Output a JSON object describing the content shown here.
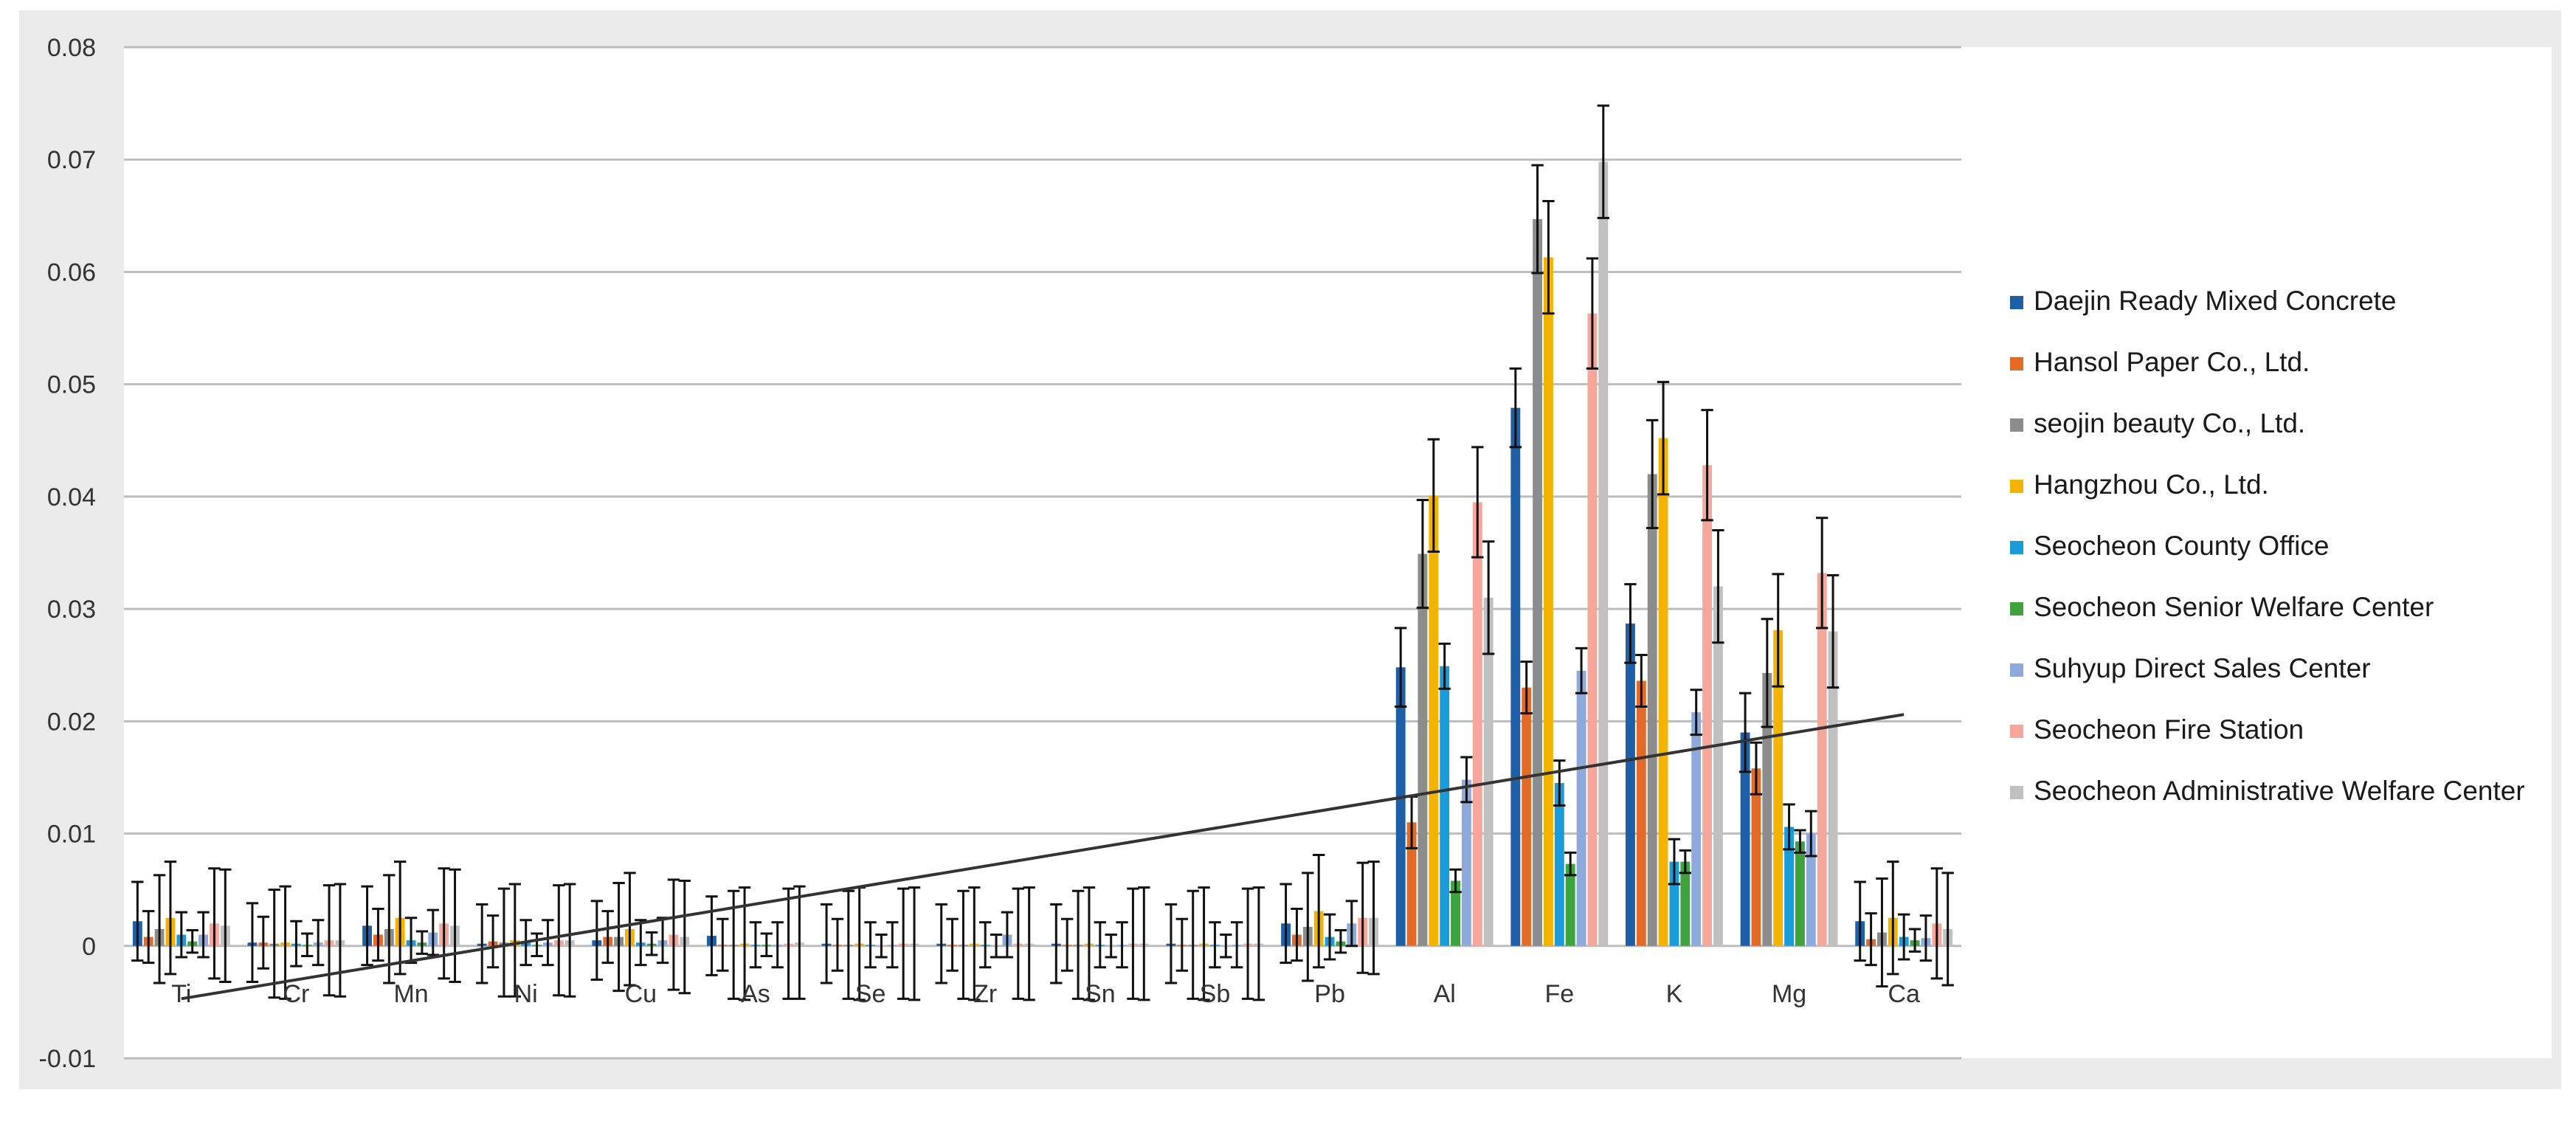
{
  "chart_data": {
    "type": "bar",
    "title": "",
    "xlabel": "",
    "ylabel": "",
    "ylim": [
      -0.01,
      0.08
    ],
    "yticks": [
      "0.08",
      "0.07",
      "0.06",
      "0.05",
      "0.04",
      "0.03",
      "0.02",
      "0.01",
      "0",
      "-0.01"
    ],
    "ytick_values": [
      0.08,
      0.07,
      0.06,
      0.05,
      0.04,
      0.03,
      0.02,
      0.01,
      0,
      -0.01
    ],
    "grid": true,
    "legend_position": "right",
    "categories": [
      "Ti",
      "Cr",
      "Mn",
      "Ni",
      "Cu",
      "As",
      "Se",
      "Zr",
      "Sn",
      "Sb",
      "Pb",
      "Al",
      "Fe",
      "K",
      "Mg",
      "Ca"
    ],
    "series": [
      {
        "name": "Daejin Ready Mixed Concrete",
        "color": "#1f5fa8",
        "values": [
          0.0022,
          0.0003,
          0.0018,
          0.0002,
          0.0005,
          0.0009,
          0.0002,
          0.0002,
          0.0002,
          0.0002,
          0.002,
          0.0248,
          0.0479,
          0.0287,
          0.019,
          0.0022
        ],
        "errors": [
          0.0035,
          0.0035,
          0.0035,
          0.0035,
          0.0035,
          0.0035,
          0.0035,
          0.0035,
          0.0035,
          0.0035,
          0.0035,
          0.0035,
          0.0035,
          0.0035,
          0.0035,
          0.0035
        ]
      },
      {
        "name": "Hansol Paper Co., Ltd.",
        "color": "#e26b2a",
        "values": [
          0.0008,
          0.0003,
          0.001,
          0.0004,
          0.0008,
          0.0001,
          0.0001,
          0.0001,
          0.0001,
          0.0001,
          0.001,
          0.011,
          0.023,
          0.0236,
          0.0158,
          0.0006
        ],
        "errors": [
          0.0023,
          0.0023,
          0.0023,
          0.0023,
          0.0023,
          0.0023,
          0.0023,
          0.0023,
          0.0023,
          0.0023,
          0.0023,
          0.0023,
          0.0023,
          0.0023,
          0.0023,
          0.0023
        ]
      },
      {
        "name": "seojin beauty Co., Ltd.",
        "color": "#8c8c8c",
        "values": [
          0.0015,
          0.0002,
          0.0015,
          0.0003,
          0.0008,
          0.0001,
          0.0001,
          0.0001,
          0.0001,
          0.0001,
          0.0017,
          0.0349,
          0.0647,
          0.042,
          0.0243,
          0.0012
        ],
        "errors": [
          0.0048,
          0.0048,
          0.0048,
          0.0048,
          0.0048,
          0.0048,
          0.0048,
          0.0048,
          0.0048,
          0.0048,
          0.0048,
          0.0048,
          0.0048,
          0.0048,
          0.0048,
          0.0048
        ]
      },
      {
        "name": "Hangzhou Co., Ltd.",
        "color": "#f2b400",
        "values": [
          0.0025,
          0.0003,
          0.0025,
          0.0005,
          0.0015,
          0.0002,
          0.0002,
          0.0002,
          0.0002,
          0.0002,
          0.0031,
          0.0401,
          0.0613,
          0.0452,
          0.0281,
          0.0025
        ],
        "errors": [
          0.005,
          0.005,
          0.005,
          0.005,
          0.005,
          0.005,
          0.005,
          0.005,
          0.005,
          0.005,
          0.005,
          0.005,
          0.005,
          0.005,
          0.005,
          0.005
        ]
      },
      {
        "name": "Seocheon County Office",
        "color": "#1a9cd8",
        "values": [
          0.001,
          0.0002,
          0.0005,
          0.0003,
          0.0003,
          0.0001,
          0.0001,
          0.0001,
          0.0001,
          0.0001,
          0.0008,
          0.0249,
          0.0145,
          0.0075,
          0.0106,
          0.0008
        ],
        "errors": [
          0.002,
          0.002,
          0.002,
          0.002,
          0.002,
          0.002,
          0.002,
          0.002,
          0.002,
          0.002,
          0.002,
          0.002,
          0.002,
          0.002,
          0.002,
          0.002
        ]
      },
      {
        "name": "Seocheon Senior Welfare Center",
        "color": "#3ea33e",
        "values": [
          0.0004,
          0.0001,
          0.0003,
          0.0001,
          0.0002,
          0.0001,
          0.0,
          0.0,
          0.0,
          0.0,
          0.0004,
          0.0058,
          0.0073,
          0.0075,
          0.0093,
          0.0005
        ],
        "errors": [
          0.001,
          0.001,
          0.001,
          0.001,
          0.001,
          0.001,
          0.001,
          0.001,
          0.001,
          0.001,
          0.001,
          0.001,
          0.001,
          0.001,
          0.001,
          0.001
        ]
      },
      {
        "name": "Suhyup Direct Sales Center",
        "color": "#8ea9db",
        "values": [
          0.001,
          0.0003,
          0.0012,
          0.0003,
          0.0005,
          0.0001,
          0.0001,
          0.001,
          0.0001,
          0.0001,
          0.002,
          0.0148,
          0.0245,
          0.0208,
          0.01,
          0.0007
        ],
        "errors": [
          0.002,
          0.002,
          0.002,
          0.002,
          0.002,
          0.002,
          0.002,
          0.002,
          0.002,
          0.002,
          0.002,
          0.002,
          0.002,
          0.002,
          0.002,
          0.002
        ]
      },
      {
        "name": "Seocheon Fire Station",
        "color": "#f4a79a",
        "values": [
          0.002,
          0.0005,
          0.002,
          0.0005,
          0.001,
          0.0002,
          0.0002,
          0.0002,
          0.0002,
          0.0002,
          0.0025,
          0.0395,
          0.0563,
          0.0428,
          0.0332,
          0.002
        ],
        "errors": [
          0.0049,
          0.0049,
          0.0049,
          0.0049,
          0.0049,
          0.0049,
          0.0049,
          0.0049,
          0.0049,
          0.0049,
          0.0049,
          0.0049,
          0.0049,
          0.0049,
          0.0049,
          0.0049
        ]
      },
      {
        "name": "Seocheon Administrative Welfare Center",
        "color": "#c0c0c0",
        "values": [
          0.0018,
          0.0005,
          0.0018,
          0.0005,
          0.0008,
          0.0003,
          0.0002,
          0.0002,
          0.0002,
          0.0002,
          0.0025,
          0.031,
          0.0698,
          0.032,
          0.028,
          0.0015
        ],
        "errors": [
          0.005,
          0.005,
          0.005,
          0.005,
          0.005,
          0.005,
          0.005,
          0.005,
          0.005,
          0.005,
          0.005,
          0.005,
          0.005,
          0.005,
          0.005,
          0.005
        ]
      }
    ],
    "trendline": {
      "start": {
        "category": "Ti",
        "value": -0.0047
      },
      "end": {
        "category": "Ca",
        "value": 0.0206
      },
      "color": "#333333"
    }
  }
}
